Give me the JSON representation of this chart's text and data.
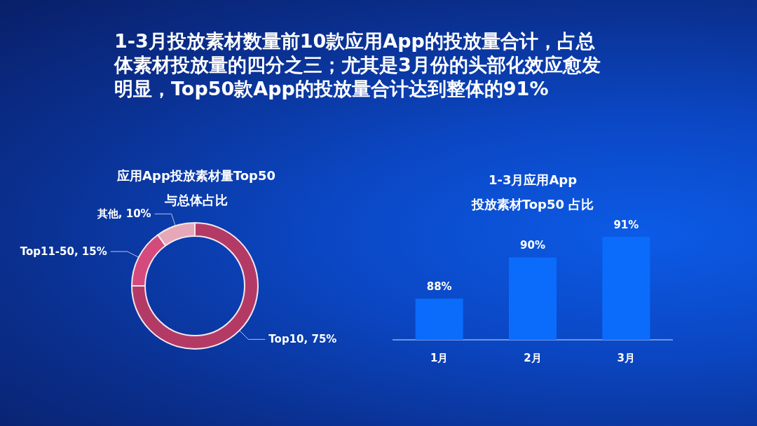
{
  "chart_data": [
    {
      "type": "other",
      "title": "1-3月投放素材数量前10款应用App的投放量合计，占总体素材投放量的四分之三；尤其是3月份的头部化效应愈发明显，Top50款App的投放量合计达到整体的91%"
    },
    {
      "type": "donut",
      "title": "应用App投放素材量Top50\n与总体占比",
      "categories": [
        "Top10",
        "Top11-50",
        "其他"
      ],
      "values": [
        75,
        15,
        10
      ],
      "value_labels": [
        "75%",
        "15%",
        "10%"
      ],
      "colors": [
        "#b43a66",
        "#d44a7c",
        "#e6a7b9"
      ]
    },
    {
      "type": "bar",
      "title": "1-3月应用App\n投放素材Top50 占比",
      "categories": [
        "1月",
        "2月",
        "3月"
      ],
      "values": [
        88,
        90,
        91
      ],
      "value_labels": [
        "88%",
        "90%",
        "91%"
      ],
      "color": "#0b6cfb",
      "ylim": [
        86,
        91
      ],
      "tick_labels": "x"
    }
  ]
}
